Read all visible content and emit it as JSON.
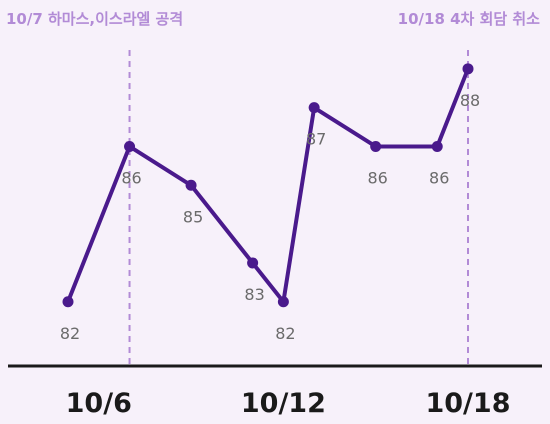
{
  "chart_data": {
    "type": "line",
    "x": [
      "10/5",
      "10/6",
      "10/7",
      "10/8",
      "10/9",
      "10/10",
      "10/11",
      "10/12",
      "10/13",
      "10/14",
      "10/15",
      "10/16",
      "10/17",
      "10/18"
    ],
    "series": [
      {
        "values": [
          82,
          null,
          86,
          null,
          85,
          null,
          83,
          82,
          87,
          null,
          86,
          null,
          86,
          88
        ]
      }
    ],
    "xticks": [
      "10/6",
      "10/12",
      "10/18"
    ],
    "annotations": [
      {
        "x": "10/7",
        "text": "10/7 하마스,이스라엘 공격"
      },
      {
        "x": "10/18",
        "text": "10/18 4차 회담 취소"
      }
    ],
    "title": "",
    "xlabel": "",
    "ylabel": "",
    "ylim": [
      80.5,
      89
    ],
    "grid": false
  },
  "colors": {
    "background": "#f7f1fa",
    "line": "#4a1a8c",
    "annotation": "#b28bd6",
    "axis": "#1a1a1a",
    "label": "#6b6b6b",
    "tick": "#1a1a1a"
  }
}
